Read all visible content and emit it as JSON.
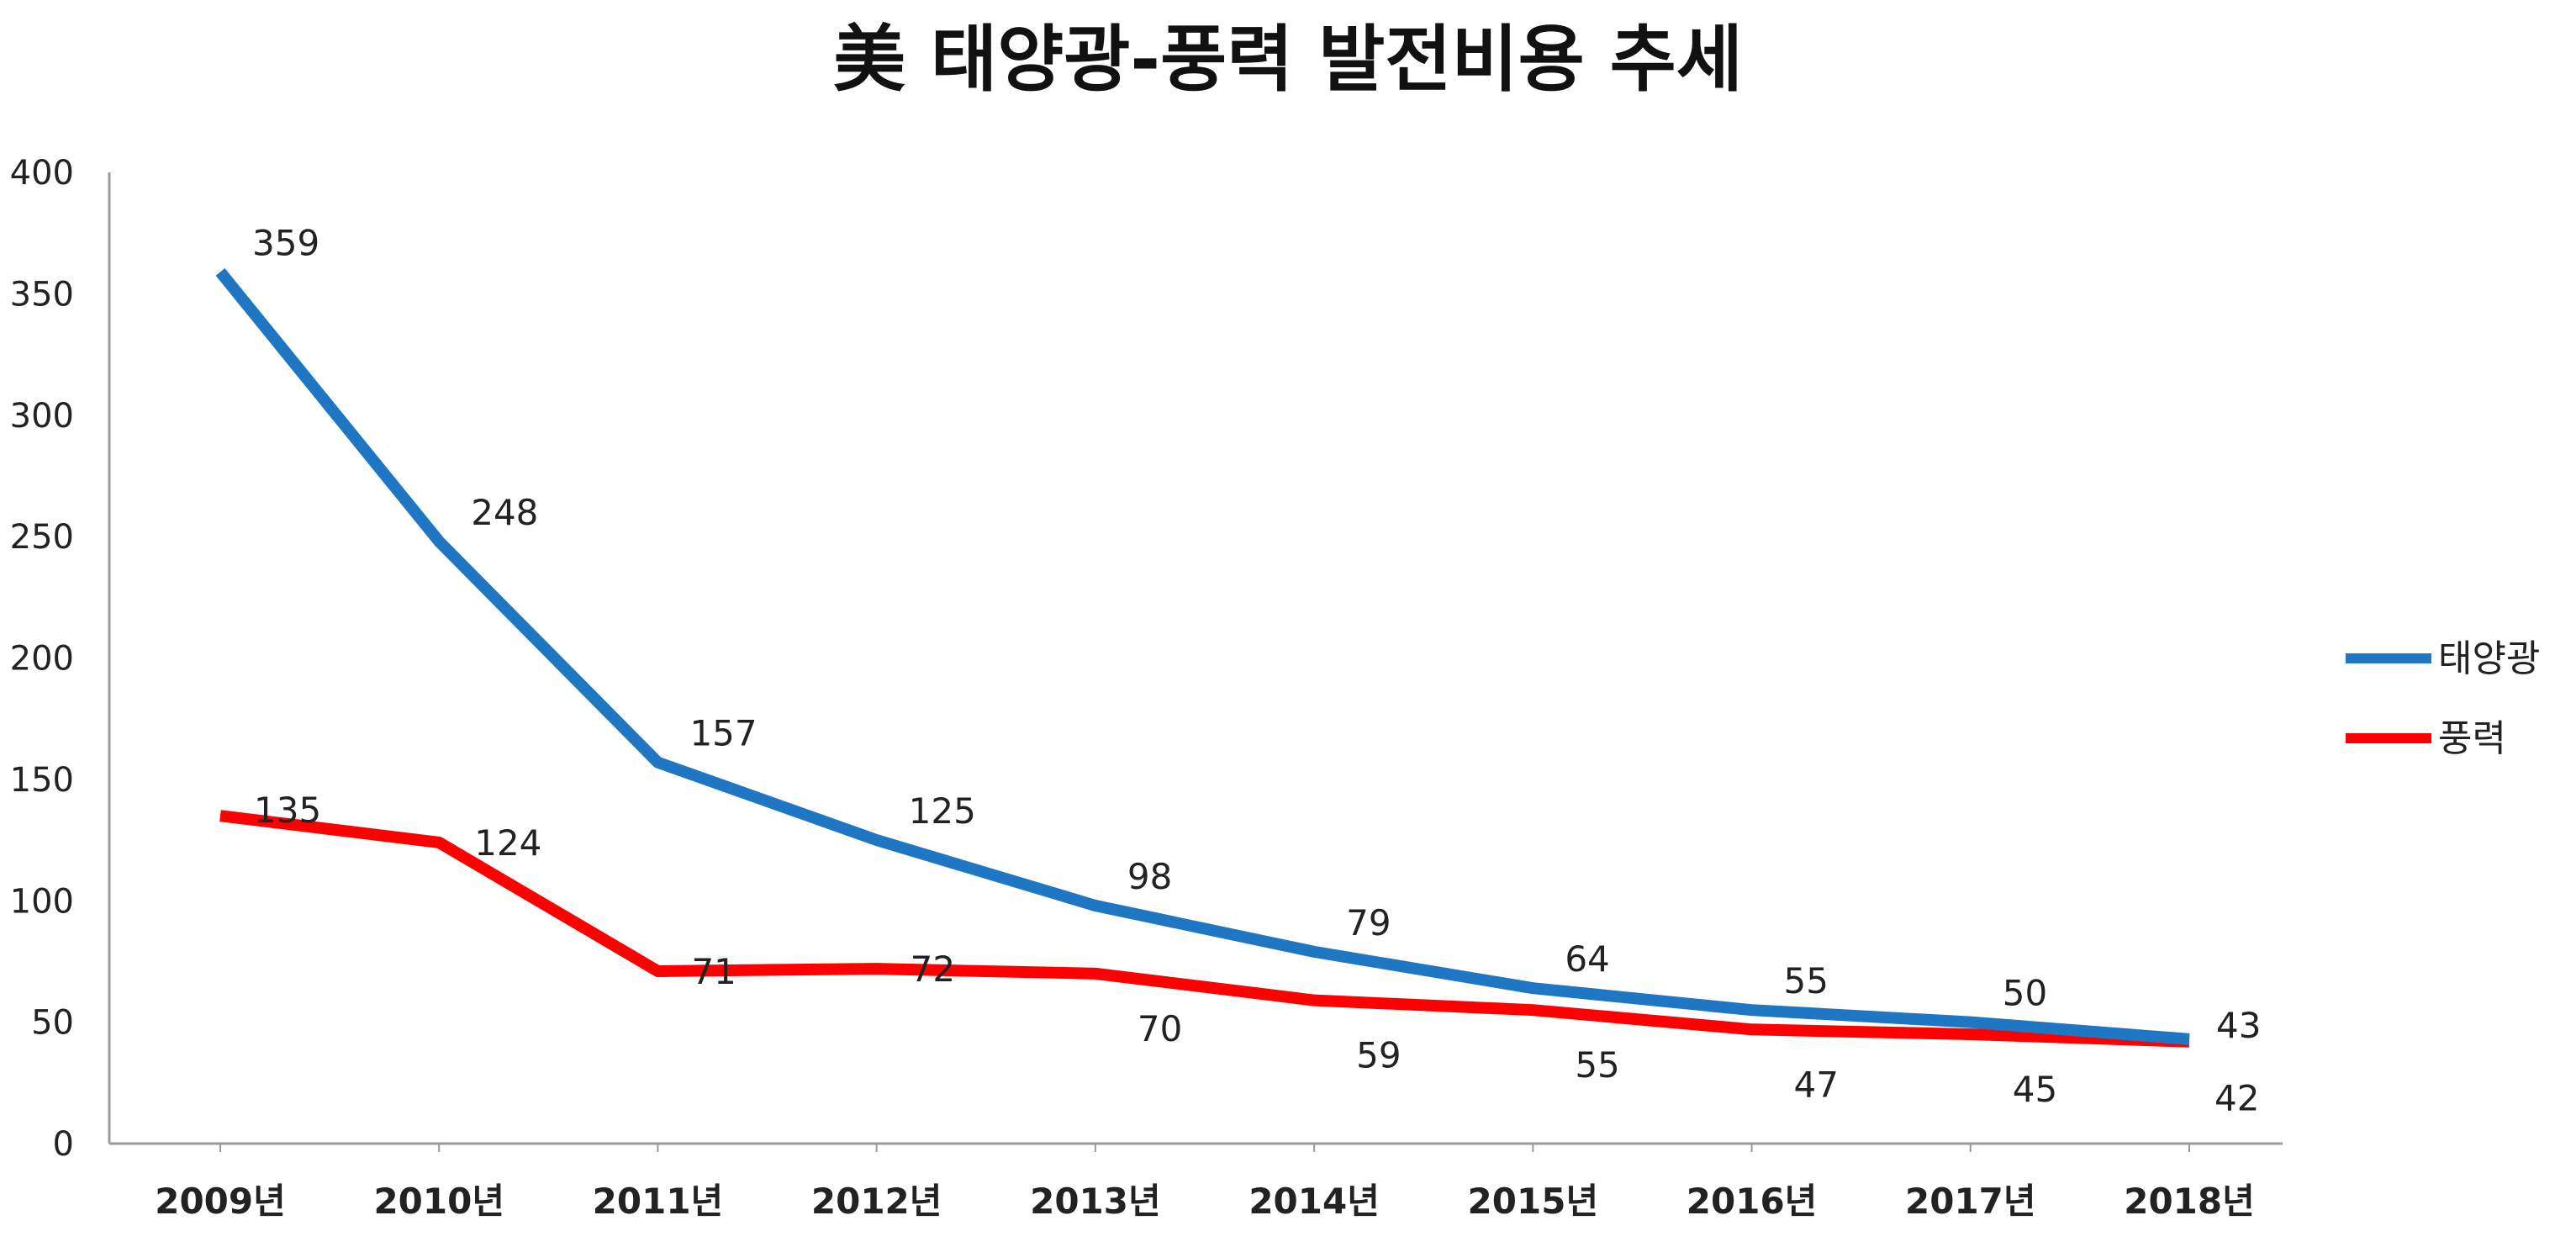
{
  "chart_data": {
    "type": "line",
    "title": "美 태양광-풍력 발전비용 추세",
    "xlabel": "",
    "ylabel": "",
    "categories": [
      "2009년",
      "2010년",
      "2011년",
      "2012년",
      "2013년",
      "2014년",
      "2015년",
      "2016년",
      "2017년",
      "2018년"
    ],
    "ylim": [
      0,
      400
    ],
    "yticks": [
      0,
      50,
      100,
      150,
      200,
      250,
      300,
      350,
      400
    ],
    "grid": false,
    "legend": "right",
    "series": [
      {
        "name": "태양광",
        "color": "#1f77c4",
        "values": [
          359,
          248,
          157,
          125,
          98,
          79,
          64,
          55,
          50,
          43
        ]
      },
      {
        "name": "풍력",
        "color": "#ff0000",
        "values": [
          135,
          124,
          71,
          72,
          70,
          59,
          55,
          47,
          45,
          42
        ]
      }
    ]
  }
}
